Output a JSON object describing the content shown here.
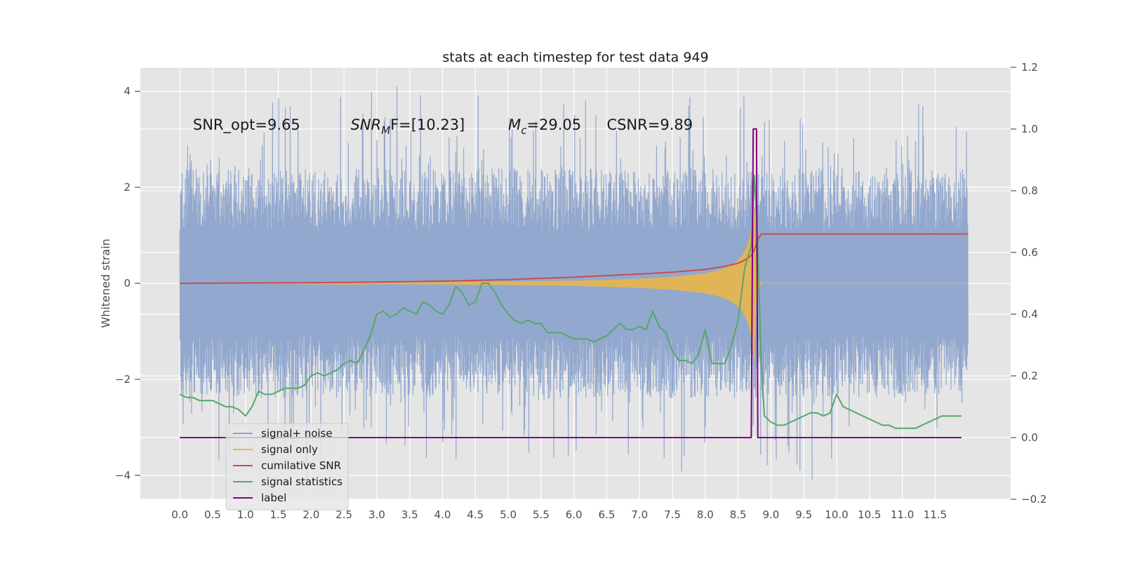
{
  "chart_data": {
    "type": "line",
    "title": "stats at each timestep for test data 949",
    "ylabel": "Whitened strain",
    "y2label": "",
    "xlim": [
      -0.6,
      12.65
    ],
    "ylim": [
      -4.5,
      4.5
    ],
    "y2lim": [
      -0.2,
      1.2
    ],
    "x_ticks": [
      0.0,
      0.5,
      1.0,
      1.5,
      2.0,
      2.5,
      3.0,
      3.5,
      4.0,
      4.5,
      5.0,
      5.5,
      6.0,
      6.5,
      7.0,
      7.5,
      8.0,
      8.5,
      9.0,
      9.5,
      10.0,
      10.5,
      11.0,
      11.5
    ],
    "x_tick_labels": [
      "0.0",
      "0.5",
      "1.0",
      "1.5",
      "2.0",
      "2.5",
      "3.0",
      "3.5",
      "4.0",
      "4.5",
      "5.0",
      "5.5",
      "6.0",
      "6.5",
      "7.0",
      "7.5",
      "8.0",
      "8.5",
      "9.0",
      "9.5",
      "10.0",
      "10.5",
      "11.0",
      "11.5"
    ],
    "y_ticks": [
      -4,
      -2,
      0,
      2,
      4
    ],
    "y_tick_labels": [
      "−4",
      "−2",
      "0",
      "2",
      "4"
    ],
    "y2_ticks": [
      -0.2,
      0.0,
      0.2,
      0.4,
      0.6,
      0.8,
      1.0,
      1.2
    ],
    "y2_tick_labels": [
      "−0.2",
      "0.0",
      "0.2",
      "0.4",
      "0.6",
      "0.8",
      "1.0",
      "1.2"
    ],
    "grid": true,
    "legend_position": "lower-left",
    "annotations": [
      {
        "text": "SNR_opt=9.65",
        "x": 0.2,
        "y": 3.3
      },
      {
        "text": "SNR",
        "sub": "M",
        "tail": "F=[10.23]",
        "x": 2.6,
        "y": 3.3
      },
      {
        "text": "M",
        "sub": "c",
        "tail": "=29.05",
        "x": 5.0,
        "y": 3.3
      },
      {
        "text": "CSNR=9.89",
        "x": 6.5,
        "y": 3.3
      }
    ],
    "series": [
      {
        "name": "signal+ noise",
        "axis": "left",
        "color": "#8ea4cc",
        "noise_envelope": {
          "x_start": 0.0,
          "x_end": 12.0,
          "typical_amplitude": 2.0,
          "max": 4.1,
          "min": -4.1
        }
      },
      {
        "name": "signal only",
        "axis": "left",
        "color": "#e8b64b",
        "chirp": {
          "x_start": 0.0,
          "x_end": 12.0,
          "merger_x": 8.75,
          "peak_amplitude": 1.6
        }
      },
      {
        "name": "cumilative SNR",
        "axis": "right",
        "color": "#c44e52",
        "x": [
          0.0,
          1.0,
          2.0,
          3.0,
          4.0,
          5.0,
          6.0,
          7.0,
          7.5,
          8.0,
          8.3,
          8.5,
          8.6,
          8.7,
          8.75,
          8.8,
          8.85,
          12.0
        ],
        "y": [
          0.5,
          0.501,
          0.502,
          0.504,
          0.507,
          0.512,
          0.52,
          0.53,
          0.536,
          0.545,
          0.555,
          0.565,
          0.575,
          0.59,
          0.61,
          0.64,
          0.66,
          0.66
        ]
      },
      {
        "name": "signal statistics",
        "axis": "right",
        "color": "#55a868",
        "x": [
          0.0,
          0.1,
          0.2,
          0.3,
          0.4,
          0.5,
          0.6,
          0.7,
          0.8,
          0.9,
          1.0,
          1.1,
          1.2,
          1.3,
          1.4,
          1.5,
          1.6,
          1.7,
          1.8,
          1.9,
          2.0,
          2.1,
          2.2,
          2.3,
          2.4,
          2.5,
          2.6,
          2.7,
          2.8,
          2.9,
          3.0,
          3.1,
          3.2,
          3.3,
          3.4,
          3.5,
          3.6,
          3.7,
          3.8,
          3.9,
          4.0,
          4.1,
          4.2,
          4.3,
          4.4,
          4.5,
          4.6,
          4.7,
          4.8,
          4.9,
          5.0,
          5.1,
          5.2,
          5.3,
          5.4,
          5.5,
          5.6,
          5.7,
          5.8,
          5.9,
          6.0,
          6.1,
          6.2,
          6.3,
          6.4,
          6.5,
          6.6,
          6.7,
          6.8,
          6.9,
          7.0,
          7.1,
          7.2,
          7.3,
          7.4,
          7.5,
          7.6,
          7.7,
          7.8,
          7.9,
          8.0,
          8.1,
          8.2,
          8.3,
          8.4,
          8.5,
          8.6,
          8.7,
          8.75,
          8.8,
          8.85,
          8.9,
          9.0,
          9.1,
          9.2,
          9.3,
          9.4,
          9.5,
          9.6,
          9.7,
          9.8,
          9.9,
          10.0,
          10.1,
          10.2,
          10.3,
          10.4,
          10.5,
          10.6,
          10.7,
          10.8,
          10.9,
          11.0,
          11.1,
          11.2,
          11.3,
          11.4,
          11.5,
          11.6,
          11.7,
          11.8,
          11.9
        ],
        "y": [
          0.14,
          0.13,
          0.13,
          0.12,
          0.12,
          0.12,
          0.11,
          0.1,
          0.1,
          0.09,
          0.07,
          0.1,
          0.15,
          0.14,
          0.14,
          0.15,
          0.16,
          0.16,
          0.16,
          0.17,
          0.2,
          0.21,
          0.2,
          0.21,
          0.22,
          0.24,
          0.25,
          0.24,
          0.28,
          0.33,
          0.4,
          0.41,
          0.39,
          0.4,
          0.42,
          0.41,
          0.4,
          0.44,
          0.43,
          0.41,
          0.4,
          0.43,
          0.49,
          0.47,
          0.43,
          0.44,
          0.5,
          0.5,
          0.47,
          0.43,
          0.4,
          0.38,
          0.37,
          0.38,
          0.37,
          0.37,
          0.34,
          0.34,
          0.34,
          0.33,
          0.32,
          0.32,
          0.32,
          0.31,
          0.32,
          0.33,
          0.35,
          0.37,
          0.35,
          0.35,
          0.36,
          0.35,
          0.41,
          0.36,
          0.34,
          0.28,
          0.25,
          0.25,
          0.24,
          0.27,
          0.35,
          0.24,
          0.24,
          0.24,
          0.3,
          0.38,
          0.55,
          0.62,
          0.85,
          0.62,
          0.25,
          0.07,
          0.05,
          0.04,
          0.04,
          0.05,
          0.06,
          0.07,
          0.08,
          0.08,
          0.07,
          0.08,
          0.14,
          0.1,
          0.09,
          0.08,
          0.07,
          0.06,
          0.05,
          0.04,
          0.04,
          0.03,
          0.03,
          0.03,
          0.03,
          0.04,
          0.05,
          0.06,
          0.07,
          0.07,
          0.07,
          0.07
        ]
      },
      {
        "name": "label",
        "axis": "right",
        "color": "#800080",
        "x": [
          0.0,
          8.65,
          8.7,
          8.73,
          8.78,
          8.8,
          11.9
        ],
        "y": [
          0.0,
          0.0,
          0.0,
          1.0,
          1.0,
          0.0,
          0.0
        ]
      }
    ]
  }
}
